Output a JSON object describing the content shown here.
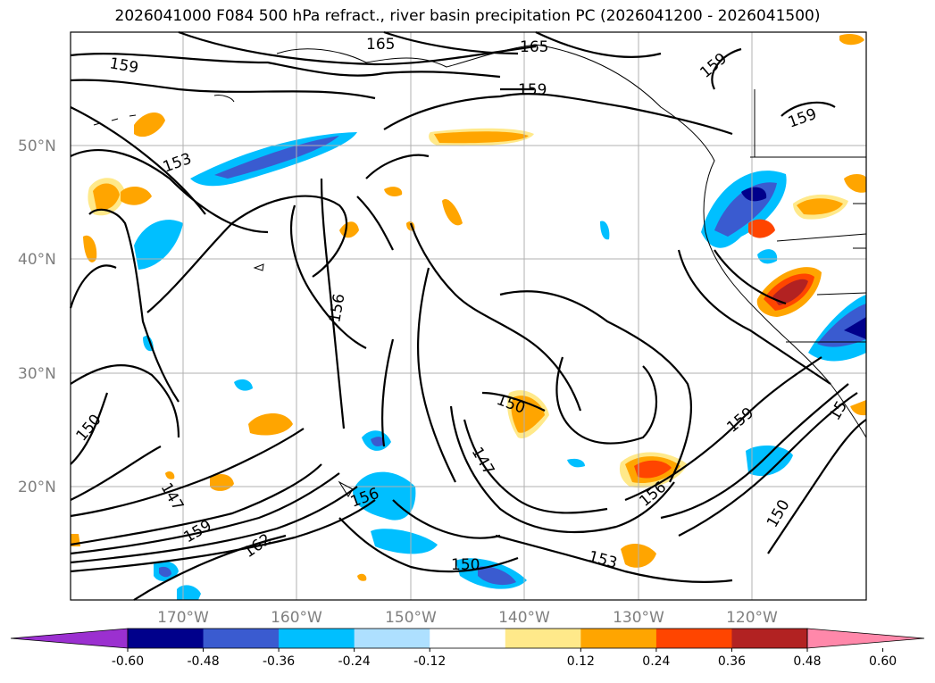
{
  "title": "2026041000 F084 500 hPa refract., river basin precipitation PC (2026041200 - 2026041500)",
  "map": {
    "lat_labels": [
      "50°N",
      "40°N",
      "30°N",
      "20°N"
    ],
    "lon_labels": [
      "170°W",
      "160°W",
      "150°W",
      "140°W",
      "130°W",
      "120°W"
    ]
  },
  "contour_labels": [
    "159",
    "165",
    "165",
    "159",
    "159",
    "159",
    "153",
    "156",
    "150",
    "147",
    "159",
    "162",
    "156",
    "150",
    "150",
    "147",
    "153",
    "156",
    "159",
    "150",
    "15"
  ],
  "colorbar": {
    "ticks": [
      "-0.60",
      "-0.48",
      "-0.36",
      "-0.24",
      "-0.12",
      "0.12",
      "0.24",
      "0.36",
      "0.48",
      "0.60"
    ],
    "colors": [
      "#9b30d0",
      "#00008b",
      "#3a5bd0",
      "#00bfff",
      "#aee0ff",
      "#ffffff",
      "#ffe98a",
      "#ffa500",
      "#ff4500",
      "#b22222",
      "#ff88aa"
    ]
  }
}
